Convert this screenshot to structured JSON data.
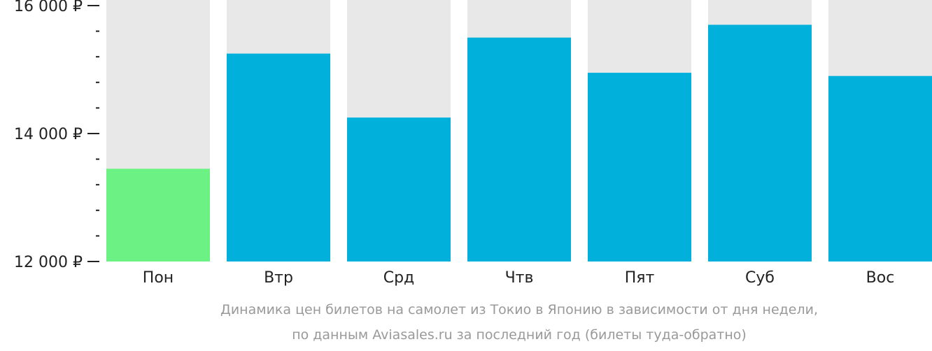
{
  "chart_data": {
    "type": "bar",
    "categories": [
      "Пон",
      "Втр",
      "Срд",
      "Чтв",
      "Пят",
      "Суб",
      "Вос"
    ],
    "values": [
      13450,
      15250,
      14250,
      15500,
      14950,
      15700,
      14900
    ],
    "highlight_index": 0,
    "ylim": [
      12000,
      16000
    ],
    "yticks": [
      12000,
      14000,
      16000
    ],
    "ytick_labels": [
      "12 000 ₽",
      "14 000 ₽",
      "16 000 ₽"
    ],
    "minor_ticks_per_major": 5,
    "title": "",
    "xlabel": "",
    "ylabel": "",
    "colors": {
      "bar": "#02b0dc",
      "highlight": "#6cf184",
      "background_bar": "#e8e8e8"
    }
  },
  "caption": {
    "line1": "Динамика цен билетов на самолет из Токио в Японию в зависимости от дня недели,",
    "line2": "по данным Aviasales.ru за последний год (билеты туда-обратно)"
  }
}
